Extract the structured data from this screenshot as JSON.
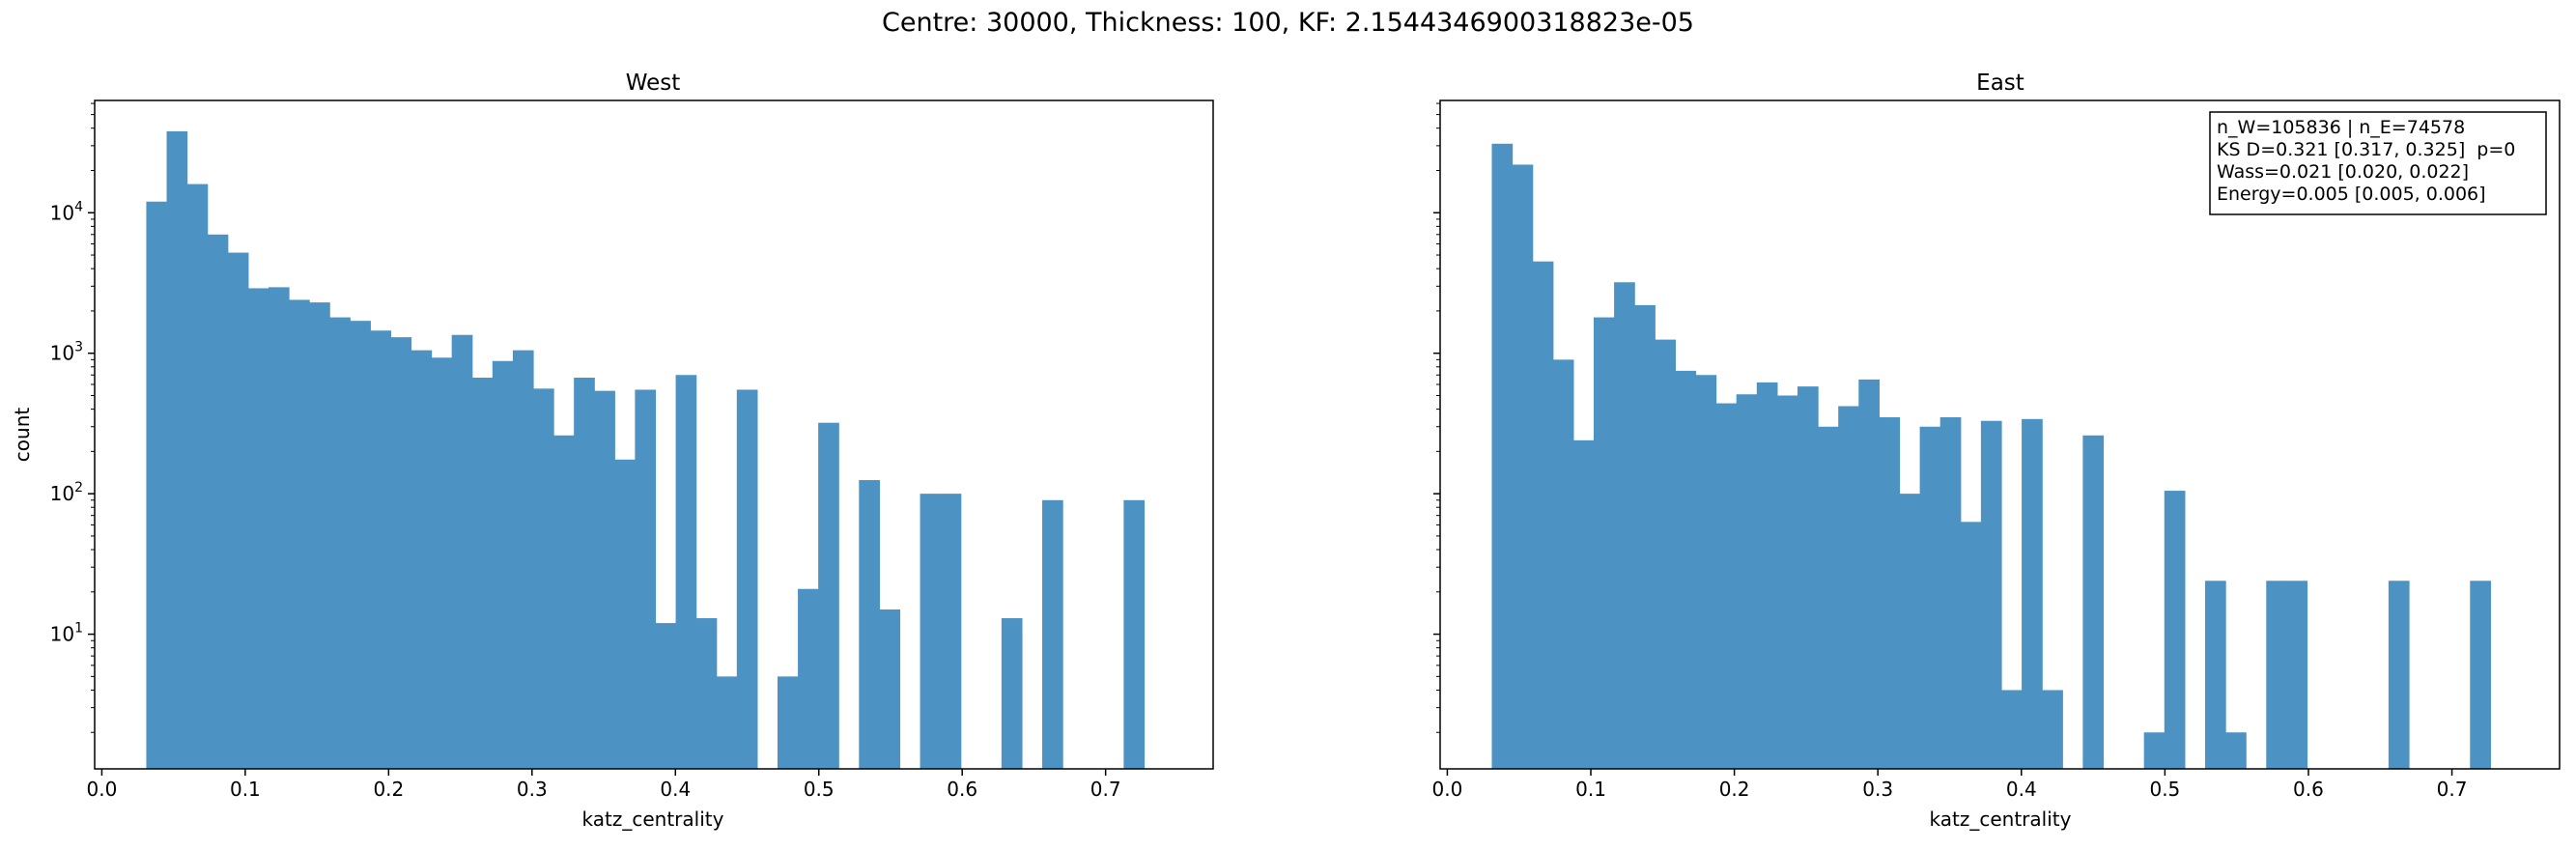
{
  "figure": {
    "suptitle": "Centre: 30000, Thickness: 100, KF: 2.1544346900318823e-05",
    "ylabel": "count",
    "bar_color": "#4c93c3"
  },
  "chart_data": [
    {
      "type": "bar",
      "title": "West",
      "xlabel": "katz_centrality",
      "ylabel": "count",
      "yscale": "log",
      "xlim": [
        -0.005,
        0.775
      ],
      "ylim": [
        1.1,
        63000
      ],
      "xticks": [
        "0.0",
        "0.1",
        "0.2",
        "0.3",
        "0.4",
        "0.5",
        "0.6",
        "0.7"
      ],
      "yticks": [
        "10^1",
        "10^2",
        "10^3",
        "10^4"
      ],
      "bin_width": 0.0142,
      "bin_starts": [
        0.031,
        0.0452,
        0.0594,
        0.0736,
        0.0878,
        0.102,
        0.1162,
        0.1304,
        0.1446,
        0.1588,
        0.173,
        0.1872,
        0.2014,
        0.2156,
        0.2298,
        0.244,
        0.2582,
        0.2724,
        0.2866,
        0.3008,
        0.315,
        0.3292,
        0.3434,
        0.3576,
        0.3718,
        0.386,
        0.4002,
        0.4144,
        0.4286,
        0.4428,
        0.457,
        0.4712,
        0.4854,
        0.4996,
        0.5138,
        0.528,
        0.5422,
        0.5564,
        0.5706,
        0.5848,
        0.599,
        0.6132,
        0.6274,
        0.6416,
        0.6558,
        0.67,
        0.6842,
        0.6984,
        0.7126,
        0.7268
      ],
      "values": [
        12000,
        38000,
        16000,
        7000,
        5200,
        2900,
        2950,
        2400,
        2300,
        1800,
        1700,
        1450,
        1300,
        1050,
        930,
        1350,
        670,
        880,
        1050,
        560,
        260,
        670,
        540,
        175,
        550,
        12,
        700,
        13,
        5,
        550,
        0,
        5,
        21,
        320,
        0,
        125,
        15,
        0,
        100,
        100,
        0,
        0,
        13,
        0,
        90,
        0,
        0,
        0,
        90,
        0
      ]
    },
    {
      "type": "bar",
      "title": "East",
      "xlabel": "katz_centrality",
      "yscale": "log",
      "xlim": [
        -0.005,
        0.775
      ],
      "ylim": [
        1.1,
        63000
      ],
      "xticks": [
        "0.0",
        "0.1",
        "0.2",
        "0.3",
        "0.4",
        "0.5",
        "0.6",
        "0.7"
      ],
      "bin_width": 0.0142,
      "bin_starts": [
        0.031,
        0.0452,
        0.0594,
        0.0736,
        0.0878,
        0.102,
        0.1162,
        0.1304,
        0.1446,
        0.1588,
        0.173,
        0.1872,
        0.2014,
        0.2156,
        0.2298,
        0.244,
        0.2582,
        0.2724,
        0.2866,
        0.3008,
        0.315,
        0.3292,
        0.3434,
        0.3576,
        0.3718,
        0.386,
        0.4002,
        0.4144,
        0.4286,
        0.4428,
        0.457,
        0.4712,
        0.4854,
        0.4996,
        0.5138,
        0.528,
        0.5422,
        0.5564,
        0.5706,
        0.5848,
        0.599,
        0.6132,
        0.6274,
        0.6416,
        0.6558,
        0.67,
        0.6842,
        0.6984,
        0.7126,
        0.7268
      ],
      "values": [
        31000,
        22000,
        4500,
        900,
        240,
        1800,
        3200,
        2200,
        1250,
        750,
        700,
        440,
        510,
        620,
        500,
        580,
        300,
        420,
        650,
        350,
        100,
        300,
        350,
        63,
        330,
        4,
        340,
        4,
        0,
        260,
        0,
        0,
        2,
        105,
        0,
        24,
        2,
        0,
        24,
        24,
        0,
        0,
        0,
        0,
        24,
        0,
        0,
        0,
        24,
        0
      ],
      "annotation": [
        "n_W=105836 | n_E=74578",
        "KS D=0.321 [0.317, 0.325]  p=0",
        "Wass=0.021 [0.020, 0.022]",
        "Energy=0.005 [0.005, 0.006]"
      ]
    }
  ]
}
